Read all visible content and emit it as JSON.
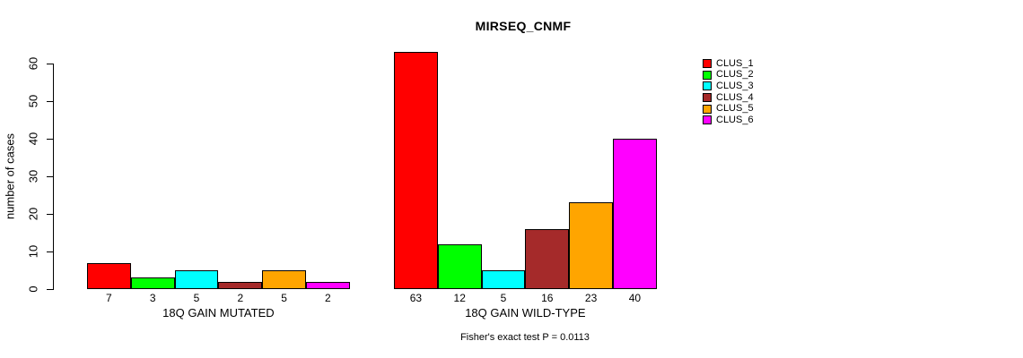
{
  "chart_data": {
    "type": "bar",
    "title": "MIRSEQ_CNMF",
    "ylabel": "number of cases",
    "ylim": [
      0,
      60
    ],
    "yticks": [
      0,
      10,
      20,
      30,
      40,
      50,
      60
    ],
    "grid": false,
    "legend_position": "right-outside",
    "categories": [
      "18Q GAIN MUTATED",
      "18Q GAIN WILD-TYPE"
    ],
    "series": [
      {
        "name": "CLUS_1",
        "color": "#FF0000",
        "values": [
          7,
          63
        ]
      },
      {
        "name": "CLUS_2",
        "color": "#00FF00",
        "values": [
          3,
          12
        ]
      },
      {
        "name": "CLUS_3",
        "color": "#00FFFF",
        "values": [
          5,
          5
        ]
      },
      {
        "name": "CLUS_4",
        "color": "#A52A2A",
        "values": [
          2,
          16
        ]
      },
      {
        "name": "CLUS_5",
        "color": "#FFA500",
        "values": [
          5,
          23
        ]
      },
      {
        "name": "CLUS_6",
        "color": "#FF00FF",
        "values": [
          2,
          40
        ]
      }
    ],
    "bar_value_labels_shown": true,
    "annotation": "Fisher's exact test P = 0.0113"
  }
}
